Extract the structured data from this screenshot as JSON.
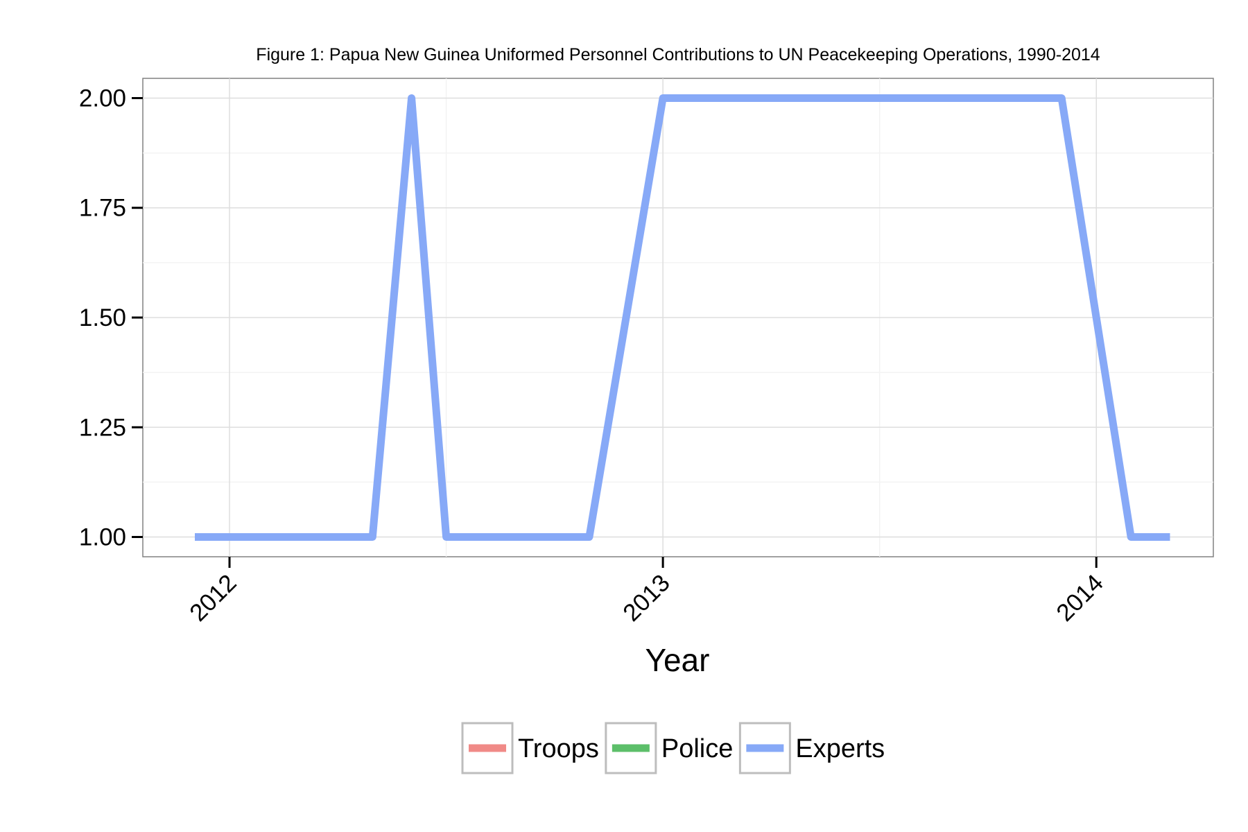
{
  "chart_data": {
    "type": "line",
    "title": "Figure 1: Papua New Guinea Uniformed Personnel Contributions to UN Peacekeeping Operations, 1990-2014",
    "xlabel": "Year",
    "ylabel": "",
    "x_ticks": [
      "2012",
      "2013",
      "2014"
    ],
    "y_ticks": [
      "1.00",
      "1.25",
      "1.50",
      "1.75",
      "2.00"
    ],
    "xlim": [
      2011.8,
      2014.27
    ],
    "ylim": [
      0.955,
      2.045
    ],
    "grid": true,
    "legend_position": "bottom",
    "series": [
      {
        "name": "Troops",
        "color": "#F08A87",
        "x": [],
        "y": []
      },
      {
        "name": "Police",
        "color": "#5CBF6A",
        "x": [],
        "y": []
      },
      {
        "name": "Experts",
        "color": "#87A9F7",
        "x": [
          2011.92,
          2012.33,
          2012.42,
          2012.5,
          2012.83,
          2013.0,
          2013.92,
          2014.08,
          2014.17
        ],
        "y": [
          1,
          1,
          2,
          1,
          1,
          2,
          2,
          1,
          1
        ]
      }
    ]
  }
}
